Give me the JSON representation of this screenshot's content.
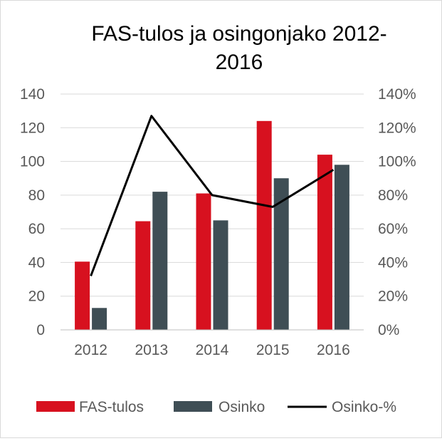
{
  "chart_data": {
    "type": "bar",
    "title_lines": [
      "FAS-tulos ja osingonjako 2012-",
      "2016"
    ],
    "categories": [
      "2012",
      "2013",
      "2014",
      "2015",
      "2016"
    ],
    "series": [
      {
        "name": "FAS-tulos",
        "kind": "bar",
        "axis": "left",
        "color": "#d7111f",
        "values": [
          40.5,
          64.5,
          81,
          124,
          104
        ]
      },
      {
        "name": "Osinko",
        "kind": "bar",
        "axis": "left",
        "color": "#3f4e55",
        "values": [
          13,
          82,
          65,
          90,
          98
        ]
      },
      {
        "name": "Osinko-%",
        "kind": "line",
        "axis": "right",
        "color": "#000000",
        "values": [
          32,
          127,
          80,
          73,
          95
        ]
      }
    ],
    "y_left": {
      "min": 0,
      "max": 140,
      "ticks": [
        "0",
        "20",
        "40",
        "60",
        "80",
        "100",
        "120",
        "140"
      ]
    },
    "y_right": {
      "min": 0,
      "max": 140,
      "ticks": [
        "0%",
        "20%",
        "40%",
        "60%",
        "80%",
        "100%",
        "120%",
        "140%"
      ]
    },
    "gridlines": true,
    "legend_position": "bottom"
  }
}
